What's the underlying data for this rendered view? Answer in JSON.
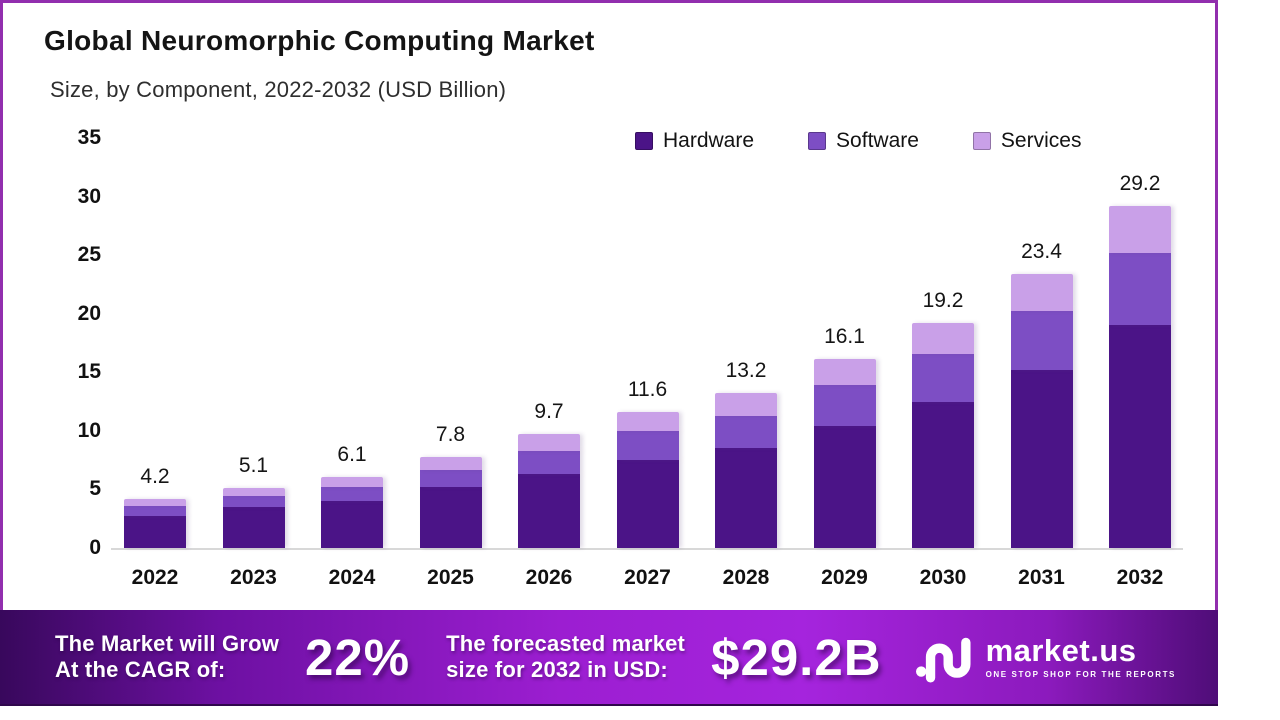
{
  "header": {
    "title": "Global Neuromorphic Computing Market",
    "subtitle": "Size, by Component, 2022-2032 (USD Billion)"
  },
  "chart_data": {
    "type": "bar",
    "stacked": true,
    "title": "Global Neuromorphic Computing Market",
    "subtitle": "Size, by Component, 2022-2032 (USD Billion)",
    "unit": "USD Billion",
    "categories": [
      "2022",
      "2023",
      "2024",
      "2025",
      "2026",
      "2027",
      "2028",
      "2029",
      "2030",
      "2031",
      "2032"
    ],
    "series": [
      {
        "name": "Hardware",
        "color": "#4b1487",
        "values": [
          2.7,
          3.5,
          4.0,
          5.2,
          6.3,
          7.5,
          8.5,
          10.4,
          12.5,
          15.2,
          19.0
        ]
      },
      {
        "name": "Software",
        "color": "#7d4ec4",
        "values": [
          0.9,
          0.9,
          1.2,
          1.5,
          2.0,
          2.5,
          2.8,
          3.5,
          4.1,
          5.0,
          6.2
        ]
      },
      {
        "name": "Services",
        "color": "#c9a0e8",
        "values": [
          0.6,
          0.7,
          0.9,
          1.1,
          1.4,
          1.6,
          1.9,
          2.2,
          2.6,
          3.2,
          4.0
        ]
      }
    ],
    "totals": [
      "4.2",
      "5.1",
      "6.1",
      "7.8",
      "9.7",
      "11.6",
      "13.2",
      "16.1",
      "19.2",
      "23.4",
      "29.2"
    ],
    "y_ticks": [
      "0",
      "5",
      "10",
      "15",
      "20",
      "25",
      "30",
      "35"
    ],
    "ylim": [
      0,
      35
    ],
    "grid": false,
    "legend_position": "top-right"
  },
  "banner": {
    "cagr_label_line1": "The Market will Grow",
    "cagr_label_line2": "At the CAGR of:",
    "cagr_value": "22%",
    "forecast_label_line1": "The forecasted market",
    "forecast_label_line2": "size for 2032 in USD:",
    "forecast_value": "$29.2B",
    "logo_text": "market.us",
    "logo_tagline": "ONE STOP SHOP FOR THE REPORTS",
    "accent_gradient": [
      "#38085c",
      "#a524dd",
      "#4f0d78"
    ]
  },
  "frame": {
    "border_color": "#922fae"
  }
}
